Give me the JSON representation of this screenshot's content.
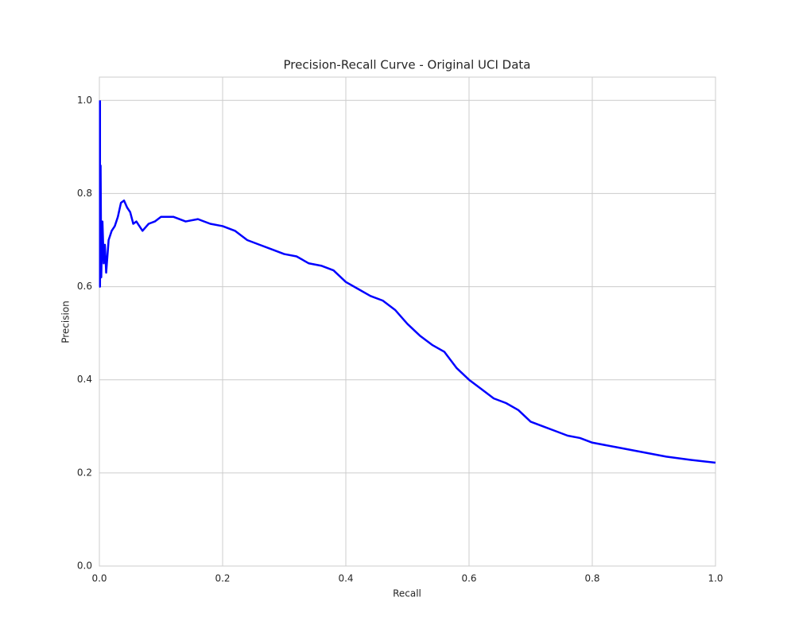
{
  "chart_data": {
    "type": "line",
    "title": "Precision-Recall Curve - Original UCI Data",
    "x_label": "Recall",
    "y_label": "Precision",
    "x": [
      0.001,
      0.001,
      0.002,
      0.003,
      0.005,
      0.007,
      0.009,
      0.011,
      0.015,
      0.02,
      0.025,
      0.03,
      0.035,
      0.04,
      0.045,
      0.05,
      0.055,
      0.06,
      0.07,
      0.08,
      0.09,
      0.1,
      0.12,
      0.14,
      0.16,
      0.18,
      0.2,
      0.22,
      0.24,
      0.26,
      0.28,
      0.3,
      0.32,
      0.34,
      0.36,
      0.38,
      0.4,
      0.42,
      0.44,
      0.46,
      0.48,
      0.5,
      0.52,
      0.54,
      0.56,
      0.58,
      0.6,
      0.62,
      0.64,
      0.66,
      0.68,
      0.7,
      0.72,
      0.74,
      0.76,
      0.78,
      0.8,
      0.84,
      0.88,
      0.92,
      0.96,
      1.0
    ],
    "series": [
      {
        "color": "#0000ff",
        "values": [
          1.0,
          0.6,
          0.86,
          0.62,
          0.74,
          0.65,
          0.69,
          0.63,
          0.7,
          0.72,
          0.73,
          0.75,
          0.78,
          0.785,
          0.77,
          0.76,
          0.735,
          0.74,
          0.72,
          0.735,
          0.74,
          0.75,
          0.75,
          0.74,
          0.745,
          0.735,
          0.73,
          0.72,
          0.7,
          0.69,
          0.68,
          0.67,
          0.665,
          0.65,
          0.645,
          0.635,
          0.61,
          0.595,
          0.58,
          0.57,
          0.55,
          0.52,
          0.495,
          0.475,
          0.46,
          0.425,
          0.4,
          0.38,
          0.36,
          0.35,
          0.335,
          0.31,
          0.3,
          0.29,
          0.28,
          0.275,
          0.265,
          0.255,
          0.245,
          0.235,
          0.228,
          0.222
        ]
      }
    ],
    "xlim": [
      0,
      1
    ],
    "ylim": [
      0,
      1.05
    ],
    "xticks": [
      {
        "value": 0,
        "label": "0.0"
      },
      0.2,
      0.4,
      0.6,
      0.8,
      {
        "value": 1,
        "label": "1.0"
      }
    ],
    "yticks": [
      {
        "value": 0,
        "label": "0.0"
      },
      0.2,
      0.4,
      0.6,
      0.8,
      {
        "value": 1,
        "label": "1.0"
      }
    ],
    "grid": true
  }
}
